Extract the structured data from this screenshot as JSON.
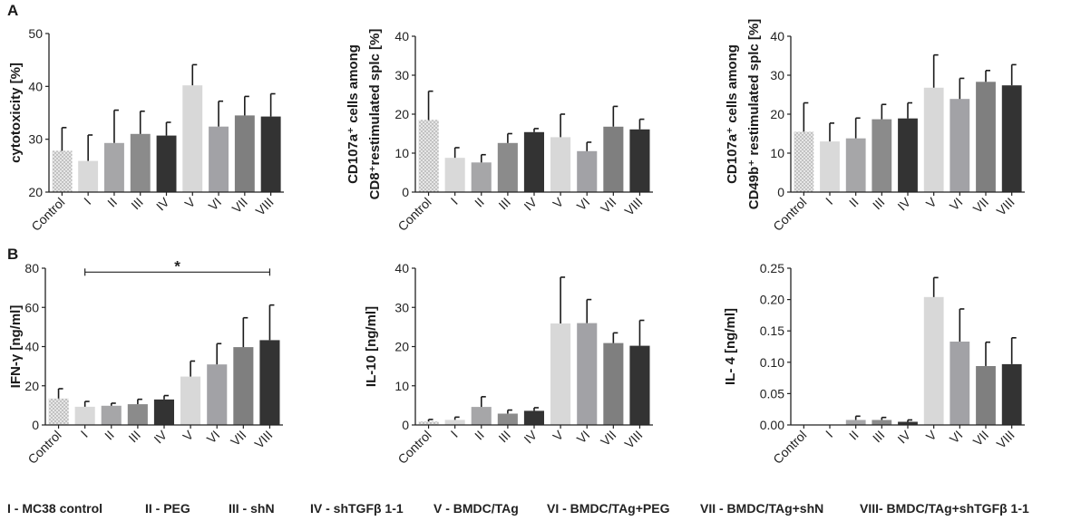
{
  "panel_labels": [
    "A",
    "B"
  ],
  "legend": [
    "I - MC38 control",
    "II - PEG",
    "III - shN",
    "IV  - shTGFβ 1-1",
    "V  - BMDC/TAg",
    "VI - BMDC/TAg+PEG",
    "VII - BMDC/TAg+shN",
    "VIII- BMDC/TAg+shTGFβ 1-1"
  ],
  "colors": {
    "control_fill": "#e6e6e6",
    "control_dots": "#8a8a8a",
    "I": "#d9d9d9",
    "II": "#a6a6a8",
    "III": "#8b8b8b",
    "IV": "#333333",
    "V": "#d8d8d8",
    "VI": "#a2a2a6",
    "VII": "#7f7f7f",
    "VIII": "#333333",
    "axis": "#222222"
  },
  "chart_data": [
    {
      "id": "cytotoxicity",
      "type": "bar",
      "panel": "A",
      "categories": [
        "Control",
        "I",
        "II",
        "III",
        "IV",
        "V",
        "VI",
        "VII",
        "VIII"
      ],
      "values": [
        27.8,
        25.9,
        29.3,
        31.0,
        30.7,
        40.2,
        32.4,
        34.5,
        34.3
      ],
      "errors": [
        4.4,
        4.9,
        6.2,
        4.3,
        2.5,
        3.9,
        4.8,
        3.6,
        4.3
      ],
      "ylabel": [
        "cytotoxicity [%]"
      ],
      "ylim": [
        20,
        50
      ],
      "yticks": [
        20,
        30,
        40,
        50
      ],
      "ytick_labels": [
        "20",
        "30",
        "40",
        "50"
      ]
    },
    {
      "id": "cd107a-cd8",
      "type": "bar",
      "panel": "A",
      "categories": [
        "Control",
        "I",
        "II",
        "III",
        "IV",
        "V",
        "VI",
        "VII",
        "VIII"
      ],
      "values": [
        18.5,
        8.8,
        7.6,
        12.6,
        15.4,
        14.1,
        10.5,
        16.8,
        16.1
      ],
      "errors": [
        7.4,
        2.6,
        2.0,
        2.4,
        0.9,
        5.9,
        2.3,
        5.2,
        2.6
      ],
      "ylabel": [
        "CD107a⁺ cells among",
        "CD8⁺restimulated splc [%]"
      ],
      "ylim": [
        0,
        40
      ],
      "yticks": [
        0,
        10,
        20,
        30,
        40
      ],
      "ytick_labels": [
        "0",
        "10",
        "20",
        "30",
        "40"
      ]
    },
    {
      "id": "cd107a-cd49b",
      "type": "bar",
      "panel": "A",
      "categories": [
        "Control",
        "I",
        "II",
        "III",
        "IV",
        "V",
        "VI",
        "VII",
        "VIII"
      ],
      "values": [
        15.5,
        13.0,
        13.8,
        18.7,
        18.9,
        26.8,
        23.9,
        28.3,
        27.4
      ],
      "errors": [
        7.4,
        4.7,
        5.2,
        3.8,
        4.0,
        8.4,
        5.3,
        2.9,
        5.3
      ],
      "ylabel": [
        "CD107a⁺ cells among",
        "CD49b⁺ restimulated splc [%]"
      ],
      "ylim": [
        0,
        40
      ],
      "yticks": [
        0,
        10,
        20,
        30,
        40
      ],
      "ytick_labels": [
        "0",
        "10",
        "20",
        "30",
        "40"
      ]
    },
    {
      "id": "ifn-gamma",
      "type": "bar",
      "panel": "B",
      "categories": [
        "Control",
        "I",
        "II",
        "III",
        "IV",
        "V",
        "VI",
        "VII",
        "VIII"
      ],
      "values": [
        13.5,
        9.3,
        9.8,
        10.6,
        13.0,
        24.7,
        30.9,
        39.7,
        43.3
      ],
      "errors": [
        5.0,
        2.7,
        1.3,
        2.5,
        2.0,
        7.9,
        10.6,
        15.0,
        17.9
      ],
      "ylabel": [
        "IFN-γ [ng/ml]"
      ],
      "ylim": [
        0,
        80
      ],
      "yticks": [
        0,
        20,
        40,
        60,
        80
      ],
      "ytick_labels": [
        "0",
        "20",
        "40",
        "60",
        "80"
      ],
      "significance": {
        "from": "I",
        "to": "VIII",
        "label": "*",
        "y": 78
      }
    },
    {
      "id": "il-10",
      "type": "bar",
      "panel": "B",
      "categories": [
        "Control",
        "I",
        "II",
        "III",
        "IV",
        "V",
        "VI",
        "VII",
        "VIII"
      ],
      "values": [
        0.9,
        1.3,
        4.6,
        2.9,
        3.6,
        25.9,
        26.0,
        20.9,
        20.2
      ],
      "errors": [
        0.5,
        0.7,
        2.6,
        0.9,
        0.8,
        11.8,
        6.0,
        2.6,
        6.5
      ],
      "ylabel": [
        "IL-10 [ng/ml]"
      ],
      "ylim": [
        0,
        40
      ],
      "yticks": [
        0,
        10,
        20,
        30,
        40
      ],
      "ytick_labels": [
        "0",
        "10",
        "20",
        "30",
        "40"
      ]
    },
    {
      "id": "il-4",
      "type": "bar",
      "panel": "B",
      "categories": [
        "Control",
        "I",
        "II",
        "III",
        "IV",
        "V",
        "VI",
        "VII",
        "VIII"
      ],
      "values": [
        0.0,
        0.0,
        0.008,
        0.008,
        0.005,
        0.204,
        0.133,
        0.094,
        0.097
      ],
      "errors": [
        0.0,
        0.0,
        0.006,
        0.004,
        0.003,
        0.031,
        0.052,
        0.038,
        0.042
      ],
      "ylabel": [
        "IL- 4 [ng/ml]"
      ],
      "ylim": [
        0,
        0.25
      ],
      "yticks": [
        0,
        0.05,
        0.1,
        0.15,
        0.2,
        0.25
      ],
      "ytick_labels": [
        "0.00",
        "0.05",
        "0.10",
        "0.15",
        "0.20",
        "0.25"
      ]
    }
  ]
}
